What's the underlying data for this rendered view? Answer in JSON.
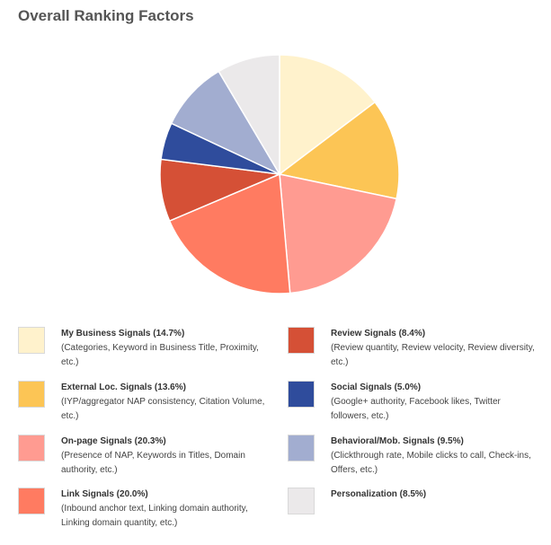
{
  "chart_data": {
    "type": "pie",
    "title": "Overall Ranking Factors",
    "series": [
      {
        "name": "My Business Signals (14.7%)",
        "description": "(Categories, Keyword in Business Title, Proximity, etc.)",
        "value": 14.7,
        "color": "#fff2cc"
      },
      {
        "name": "External Loc. Signals (13.6%)",
        "description": "(IYP/aggregator NAP consistency, Citation Volume, etc.)",
        "value": 13.6,
        "color": "#fcc555"
      },
      {
        "name": "On-page Signals (20.3%)",
        "description": "(Presence of NAP, Keywords in Titles, Domain authority, etc.)",
        "value": 20.3,
        "color": "#ff9b91"
      },
      {
        "name": "Link Signals (20.0%)",
        "description": "(Inbound anchor text, Linking domain authority, Linking domain quantity, etc.)",
        "value": 20.0,
        "color": "#ff7b61"
      },
      {
        "name": "Review Signals (8.4%)",
        "description": "(Review quantity, Review velocity, Review diversity, etc.)",
        "value": 8.4,
        "color": "#d55036"
      },
      {
        "name": "Social Signals (5.0%)",
        "description": "(Google+ authority, Facebook likes, Twitter followers, etc.)",
        "value": 5.0,
        "color": "#2f4c9c"
      },
      {
        "name": "Behavioral/Mob. Signals (9.5%)",
        "description": "(Clickthrough rate, Mobile clicks to call, Check-ins, Offers, etc.)",
        "value": 9.5,
        "color": "#a2add0"
      },
      {
        "name": "Personalization (8.5%)",
        "description": "",
        "value": 8.5,
        "color": "#ebe9ea"
      }
    ],
    "legend_placement": "bottom, two columns"
  }
}
